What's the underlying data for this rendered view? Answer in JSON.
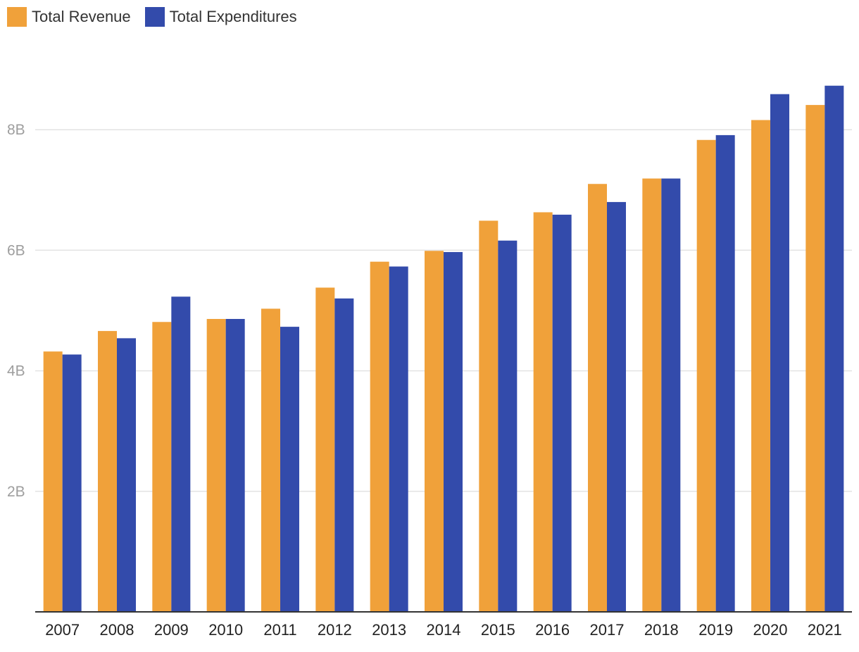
{
  "chart_data": {
    "type": "bar",
    "title": "",
    "xlabel": "",
    "ylabel": "",
    "categories": [
      "2007",
      "2008",
      "2009",
      "2010",
      "2011",
      "2012",
      "2013",
      "2014",
      "2015",
      "2016",
      "2017",
      "2018",
      "2019",
      "2020",
      "2021"
    ],
    "series": [
      {
        "name": "Total Revenue",
        "color": "#F0A13A",
        "values": [
          4.32,
          4.66,
          4.81,
          4.86,
          5.03,
          5.38,
          5.81,
          5.99,
          6.49,
          6.63,
          7.1,
          7.19,
          7.83,
          8.16,
          8.41
        ]
      },
      {
        "name": "Total Expenditures",
        "color": "#334BAB",
        "values": [
          4.27,
          4.54,
          5.23,
          4.86,
          4.73,
          5.2,
          5.73,
          5.97,
          6.16,
          6.59,
          6.8,
          7.19,
          7.91,
          8.59,
          8.73
        ]
      }
    ],
    "ylim": [
      0,
      9
    ],
    "yticks": [
      2,
      4,
      6,
      8
    ],
    "ytick_labels": [
      "2B",
      "4B",
      "6B",
      "8B"
    ],
    "grid": true,
    "legend": "top-left"
  }
}
